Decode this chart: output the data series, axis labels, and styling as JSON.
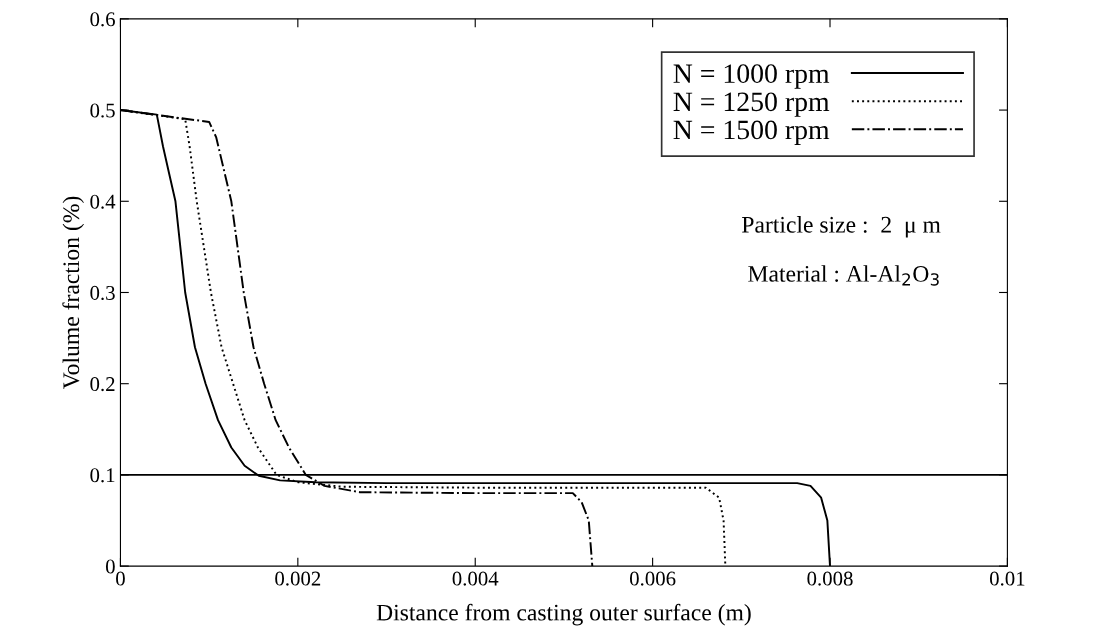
{
  "chart_data": {
    "type": "line",
    "xlabel": "Distance from casting outer surface (m)",
    "ylabel": "Volume fraction (%)",
    "xlim": [
      0,
      0.01
    ],
    "xticks": [
      0,
      0.002,
      0.004,
      0.006,
      0.008,
      0.01
    ],
    "ylim": [
      0,
      0.6
    ],
    "yticks": [
      0,
      0.1,
      0.2,
      0.3,
      0.4,
      0.5,
      0.6
    ],
    "grid": false,
    "legend": "top right",
    "series": [
      {
        "name": "N = 1000 rpm",
        "color": "#000000",
        "line_style": "solid",
        "x": [
          0,
          0.00041,
          0.00048,
          0.00055,
          0.00062,
          0.00073,
          0.00084,
          0.00096,
          0.0011,
          0.00125,
          0.0014,
          0.00156,
          0.0018,
          0.0022,
          0.003,
          0.005,
          0.00763,
          0.00778,
          0.0079,
          0.00797,
          0.008
        ],
        "values": [
          0.5,
          0.495,
          0.46,
          0.43,
          0.4,
          0.3,
          0.24,
          0.2,
          0.16,
          0.13,
          0.11,
          0.099,
          0.094,
          0.092,
          0.091,
          0.091,
          0.091,
          0.088,
          0.075,
          0.05,
          0
        ]
      },
      {
        "name": "N = 1250 rpm",
        "color": "#000000",
        "line_style": "dotted",
        "x": [
          0,
          0.00073,
          0.00078,
          0.00086,
          0.00102,
          0.00114,
          0.00127,
          0.0014,
          0.00155,
          0.00176,
          0.002,
          0.0025,
          0.004,
          0.0066,
          0.00675,
          0.0068,
          0.00682
        ],
        "values": [
          0.5,
          0.49,
          0.46,
          0.4,
          0.3,
          0.24,
          0.2,
          0.16,
          0.13,
          0.1,
          0.092,
          0.087,
          0.086,
          0.086,
          0.075,
          0.05,
          0
        ]
      },
      {
        "name": "N = 1500 rpm",
        "color": "#000000",
        "line_style": "dashdot",
        "x": [
          0,
          0.001,
          0.00108,
          0.00125,
          0.00139,
          0.0015,
          0.00162,
          0.00175,
          0.0019,
          0.00209,
          0.0023,
          0.0027,
          0.004,
          0.0051,
          0.0052,
          0.00528,
          0.00532
        ],
        "values": [
          0.5,
          0.487,
          0.47,
          0.4,
          0.3,
          0.24,
          0.2,
          0.16,
          0.13,
          0.1,
          0.088,
          0.081,
          0.08,
          0.08,
          0.07,
          0.05,
          0
        ]
      }
    ],
    "ref_lines": [
      {
        "axis": "y",
        "value": 0.1,
        "color": "#000000",
        "line_style": "solid"
      }
    ],
    "annotations": [
      "Particle size :  2  μ m",
      "Material : Al-Al$_{2}$O$_{3}$"
    ]
  }
}
